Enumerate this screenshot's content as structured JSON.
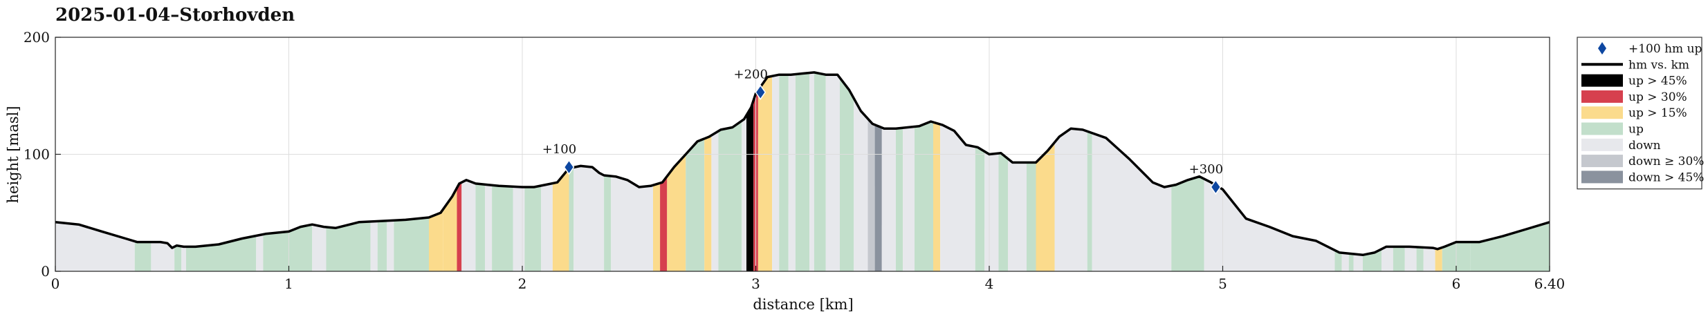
{
  "chart_data": {
    "type": "area",
    "title": "2025-01-04–Storhovden",
    "xlabel": "distance [km]",
    "ylabel": "height [masl]",
    "xlim": [
      0,
      6.4
    ],
    "ylim": [
      0,
      200
    ],
    "x_ticks": [
      0,
      1,
      2,
      3,
      4,
      5,
      6,
      6.4
    ],
    "x_tick_labels": [
      "0",
      "1",
      "2",
      "3",
      "4",
      "5",
      "6",
      "6.40"
    ],
    "y_ticks": [
      0,
      100,
      200
    ],
    "y_tick_labels": [
      "0",
      "100",
      "200"
    ],
    "grid": true,
    "legend_position": "outside-right",
    "colors": {
      "profile_line": "#000000",
      "marker": "#0d47a1",
      "up_over_45": "#000000",
      "up_over_30": "#d6404e",
      "up_over_15": "#fbdb8c",
      "up": "#c2dfcb",
      "down": "#e7e8ec",
      "down_over_30": "#c5c8ce",
      "down_over_45": "#8a929e",
      "grid": "#dddddd",
      "axis": "#222222"
    },
    "legend": [
      {
        "label": "+100 hm up",
        "kind": "marker",
        "color": "#0d47a1"
      },
      {
        "label": "hm vs. km",
        "kind": "line",
        "color": "#000000"
      },
      {
        "label": "up > 45%",
        "kind": "patch",
        "color": "#000000"
      },
      {
        "label": "up > 30%",
        "kind": "patch",
        "color": "#d6404e"
      },
      {
        "label": "up > 15%",
        "kind": "patch",
        "color": "#fbdb8c"
      },
      {
        "label": "up",
        "kind": "patch",
        "color": "#c2dfcb"
      },
      {
        "label": "down",
        "kind": "patch",
        "color": "#e7e8ec"
      },
      {
        "label": "down ≥ 30%",
        "kind": "patch",
        "color": "#c5c8ce"
      },
      {
        "label": "down > 45%",
        "kind": "patch",
        "color": "#8a929e"
      }
    ],
    "profile": {
      "x": [
        0,
        0.1,
        0.2,
        0.3,
        0.35,
        0.4,
        0.45,
        0.48,
        0.5,
        0.52,
        0.55,
        0.6,
        0.7,
        0.8,
        0.9,
        1.0,
        1.05,
        1.1,
        1.15,
        1.2,
        1.3,
        1.4,
        1.5,
        1.6,
        1.65,
        1.7,
        1.73,
        1.76,
        1.8,
        1.85,
        1.9,
        2.0,
        2.05,
        2.1,
        2.15,
        2.2,
        2.25,
        2.3,
        2.33,
        2.35,
        2.4,
        2.45,
        2.5,
        2.55,
        2.6,
        2.65,
        2.7,
        2.75,
        2.8,
        2.85,
        2.9,
        2.95,
        2.98,
        3.0,
        3.05,
        3.1,
        3.15,
        3.2,
        3.25,
        3.3,
        3.35,
        3.4,
        3.45,
        3.5,
        3.55,
        3.6,
        3.7,
        3.75,
        3.8,
        3.85,
        3.9,
        3.95,
        4.0,
        4.05,
        4.1,
        4.15,
        4.2,
        4.25,
        4.3,
        4.35,
        4.4,
        4.5,
        4.55,
        4.6,
        4.7,
        4.75,
        4.8,
        4.85,
        4.9,
        4.95,
        5.0,
        5.1,
        5.2,
        5.3,
        5.35,
        5.4,
        5.5,
        5.6,
        5.65,
        5.7,
        5.8,
        5.9,
        5.92,
        5.95,
        6.0,
        6.05,
        6.1,
        6.2,
        6.3,
        6.4
      ],
      "y": [
        42,
        40,
        34,
        28,
        25,
        25,
        25,
        24,
        20,
        22,
        21,
        21,
        23,
        28,
        32,
        34,
        38,
        40,
        38,
        37,
        42,
        43,
        44,
        46,
        50,
        64,
        75,
        78,
        75,
        74,
        73,
        72,
        72,
        74,
        76,
        88,
        90,
        89,
        84,
        82,
        81,
        78,
        72,
        73,
        76,
        89,
        100,
        111,
        115,
        121,
        123,
        130,
        140,
        152,
        166,
        168,
        168,
        169,
        170,
        168,
        168,
        155,
        137,
        126,
        122,
        122,
        124,
        128,
        125,
        120,
        108,
        106,
        100,
        101,
        93,
        93,
        93,
        103,
        115,
        122,
        121,
        114,
        105,
        96,
        76,
        72,
        74,
        78,
        81,
        76,
        70,
        45,
        38,
        30,
        28,
        26,
        16,
        14,
        16,
        21,
        21,
        20,
        19,
        21,
        25,
        25,
        25,
        30,
        36,
        42
      ]
    },
    "segments": [
      {
        "from": 0.0,
        "to": 0.34,
        "cls": "down"
      },
      {
        "from": 0.34,
        "to": 0.41,
        "cls": "up"
      },
      {
        "from": 0.41,
        "to": 0.48,
        "cls": "down"
      },
      {
        "from": 0.48,
        "to": 0.51,
        "cls": "down"
      },
      {
        "from": 0.51,
        "to": 0.54,
        "cls": "up"
      },
      {
        "from": 0.54,
        "to": 0.56,
        "cls": "down"
      },
      {
        "from": 0.56,
        "to": 0.86,
        "cls": "up"
      },
      {
        "from": 0.86,
        "to": 0.89,
        "cls": "down"
      },
      {
        "from": 0.89,
        "to": 1.1,
        "cls": "up"
      },
      {
        "from": 1.1,
        "to": 1.16,
        "cls": "down"
      },
      {
        "from": 1.16,
        "to": 1.35,
        "cls": "up"
      },
      {
        "from": 1.35,
        "to": 1.38,
        "cls": "down"
      },
      {
        "from": 1.38,
        "to": 1.42,
        "cls": "up"
      },
      {
        "from": 1.42,
        "to": 1.45,
        "cls": "down"
      },
      {
        "from": 1.45,
        "to": 1.6,
        "cls": "up"
      },
      {
        "from": 1.6,
        "to": 1.66,
        "cls": "up_over_15"
      },
      {
        "from": 1.66,
        "to": 1.72,
        "cls": "up_over_15"
      },
      {
        "from": 1.72,
        "to": 1.74,
        "cls": "up_over_30"
      },
      {
        "from": 1.74,
        "to": 1.8,
        "cls": "down"
      },
      {
        "from": 1.8,
        "to": 1.84,
        "cls": "up"
      },
      {
        "from": 1.84,
        "to": 1.87,
        "cls": "down"
      },
      {
        "from": 1.87,
        "to": 1.96,
        "cls": "up"
      },
      {
        "from": 1.96,
        "to": 2.01,
        "cls": "down"
      },
      {
        "from": 2.01,
        "to": 2.08,
        "cls": "up"
      },
      {
        "from": 2.08,
        "to": 2.13,
        "cls": "down"
      },
      {
        "from": 2.13,
        "to": 2.2,
        "cls": "up_over_15"
      },
      {
        "from": 2.2,
        "to": 2.22,
        "cls": "up"
      },
      {
        "from": 2.22,
        "to": 2.35,
        "cls": "down"
      },
      {
        "from": 2.35,
        "to": 2.38,
        "cls": "up"
      },
      {
        "from": 2.38,
        "to": 2.56,
        "cls": "down"
      },
      {
        "from": 2.56,
        "to": 2.59,
        "cls": "up_over_15"
      },
      {
        "from": 2.59,
        "to": 2.62,
        "cls": "up_over_30"
      },
      {
        "from": 2.62,
        "to": 2.7,
        "cls": "up_over_15"
      },
      {
        "from": 2.7,
        "to": 2.78,
        "cls": "up"
      },
      {
        "from": 2.78,
        "to": 2.81,
        "cls": "up_over_15"
      },
      {
        "from": 2.81,
        "to": 2.84,
        "cls": "down"
      },
      {
        "from": 2.84,
        "to": 2.94,
        "cls": "up"
      },
      {
        "from": 2.94,
        "to": 2.96,
        "cls": "down"
      },
      {
        "from": 2.96,
        "to": 2.99,
        "cls": "up_over_45"
      },
      {
        "from": 2.99,
        "to": 3.01,
        "cls": "up_over_30"
      },
      {
        "from": 3.01,
        "to": 3.07,
        "cls": "up_over_15"
      },
      {
        "from": 3.07,
        "to": 3.1,
        "cls": "down"
      },
      {
        "from": 3.1,
        "to": 3.14,
        "cls": "up"
      },
      {
        "from": 3.14,
        "to": 3.17,
        "cls": "down"
      },
      {
        "from": 3.17,
        "to": 3.23,
        "cls": "up"
      },
      {
        "from": 3.23,
        "to": 3.25,
        "cls": "down"
      },
      {
        "from": 3.25,
        "to": 3.3,
        "cls": "up"
      },
      {
        "from": 3.3,
        "to": 3.36,
        "cls": "down"
      },
      {
        "from": 3.36,
        "to": 3.42,
        "cls": "up"
      },
      {
        "from": 3.42,
        "to": 3.48,
        "cls": "down"
      },
      {
        "from": 3.48,
        "to": 3.51,
        "cls": "down_over_30"
      },
      {
        "from": 3.51,
        "to": 3.54,
        "cls": "down_over_45"
      },
      {
        "from": 3.54,
        "to": 3.6,
        "cls": "down"
      },
      {
        "from": 3.6,
        "to": 3.63,
        "cls": "up"
      },
      {
        "from": 3.63,
        "to": 3.68,
        "cls": "down"
      },
      {
        "from": 3.68,
        "to": 3.76,
        "cls": "up"
      },
      {
        "from": 3.76,
        "to": 3.79,
        "cls": "up_over_15"
      },
      {
        "from": 3.79,
        "to": 3.94,
        "cls": "down"
      },
      {
        "from": 3.94,
        "to": 3.98,
        "cls": "up"
      },
      {
        "from": 3.98,
        "to": 4.04,
        "cls": "down"
      },
      {
        "from": 4.04,
        "to": 4.08,
        "cls": "up"
      },
      {
        "from": 4.08,
        "to": 4.16,
        "cls": "down"
      },
      {
        "from": 4.16,
        "to": 4.2,
        "cls": "up"
      },
      {
        "from": 4.2,
        "to": 4.28,
        "cls": "up_over_15"
      },
      {
        "from": 4.28,
        "to": 4.42,
        "cls": "down"
      },
      {
        "from": 4.42,
        "to": 4.44,
        "cls": "up"
      },
      {
        "from": 4.44,
        "to": 4.78,
        "cls": "down"
      },
      {
        "from": 4.78,
        "to": 4.92,
        "cls": "up"
      },
      {
        "from": 4.92,
        "to": 5.48,
        "cls": "down"
      },
      {
        "from": 5.48,
        "to": 5.51,
        "cls": "up"
      },
      {
        "from": 5.51,
        "to": 5.54,
        "cls": "down"
      },
      {
        "from": 5.54,
        "to": 5.56,
        "cls": "up"
      },
      {
        "from": 5.56,
        "to": 5.6,
        "cls": "down"
      },
      {
        "from": 5.6,
        "to": 5.68,
        "cls": "up"
      },
      {
        "from": 5.68,
        "to": 5.73,
        "cls": "down"
      },
      {
        "from": 5.73,
        "to": 5.78,
        "cls": "up"
      },
      {
        "from": 5.78,
        "to": 5.83,
        "cls": "down"
      },
      {
        "from": 5.83,
        "to": 5.86,
        "cls": "up"
      },
      {
        "from": 5.86,
        "to": 5.91,
        "cls": "down"
      },
      {
        "from": 5.91,
        "to": 5.94,
        "cls": "up_over_15"
      },
      {
        "from": 5.94,
        "to": 6.06,
        "cls": "up"
      },
      {
        "from": 6.06,
        "to": 6.4,
        "cls": "up"
      }
    ],
    "markers": [
      {
        "label": "+100",
        "x": 2.2,
        "y": 89
      },
      {
        "label": "+200",
        "x": 3.02,
        "y": 153
      },
      {
        "label": "+300",
        "x": 4.97,
        "y": 72
      }
    ]
  }
}
